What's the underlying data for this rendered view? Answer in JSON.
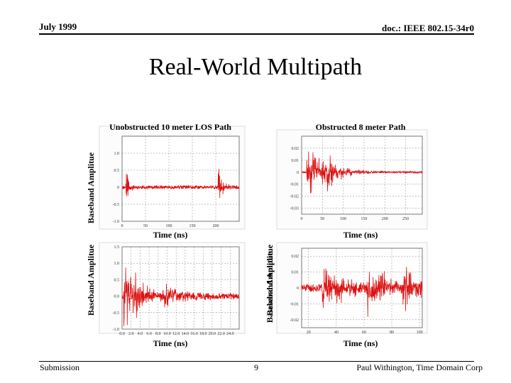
{
  "header": {
    "date": "July 1999",
    "doc_id": "doc.: IEEE 802.15-34r0"
  },
  "slide": {
    "title": "Real-World Multipath"
  },
  "footer": {
    "left": "Submission",
    "page": "9",
    "right": "Paul Withington, Time Domain Corp"
  },
  "colors": {
    "trace": "#dd1111",
    "axis": "#555555",
    "grid": "#888888",
    "frame": "#dddddd"
  },
  "chart_data": [
    {
      "type": "line",
      "title": "Unobstructed 10 meter LOS Path",
      "xlabel": "Time (ns)",
      "ylabel": "Baseband Amplitue",
      "xlim": [
        0,
        250
      ],
      "ylim": [
        -1.0,
        1.5
      ],
      "xticks": [
        0,
        50,
        100,
        150,
        200
      ],
      "yticks": [
        1.0,
        0.5,
        0,
        -0.5,
        -1.0
      ],
      "ytick_labels": [
        "1.0",
        "0.5",
        "0",
        "-0.5",
        "-1.0"
      ],
      "description_series": "baseband trace",
      "bursts": [
        {
          "t": 8,
          "amp": 0.9,
          "decay": 6
        },
        {
          "t": 205,
          "amp": 0.75,
          "decay": 8
        }
      ],
      "noise": 0.05,
      "seed": 11
    },
    {
      "type": "line",
      "title": "Obstructed 8 meter Path",
      "xlabel": "Time (ns)",
      "ylabel": "Baseband Amplitue",
      "xlim": [
        0,
        290
      ],
      "ylim": [
        -0.035,
        0.03
      ],
      "xticks": [
        0,
        50,
        100,
        150,
        200,
        250
      ],
      "yticks": [
        0.02,
        0.01,
        0,
        -0.01,
        -0.02,
        -0.03
      ],
      "ytick_labels": [
        "0.02",
        "0.01",
        "0",
        "-0.01",
        "-0.02",
        "-0.03"
      ],
      "description_series": "baseband trace",
      "bursts": [
        {
          "t": 12,
          "amp": 0.025,
          "decay": 45
        },
        {
          "t": 60,
          "amp": 0.012,
          "decay": 30
        }
      ],
      "noise": 0.0008,
      "seed": 23
    },
    {
      "type": "line",
      "title": "",
      "xlabel": "Time (ns)",
      "ylabel": "Baseband Amplitue",
      "xlim": [
        0,
        26
      ],
      "ylim": [
        -1.0,
        1.5
      ],
      "xticks": [
        0,
        2,
        4,
        6,
        8,
        10,
        12,
        14,
        16,
        18,
        20,
        22,
        24
      ],
      "xtick_labels": [
        "0.0",
        "2.0",
        "4.0",
        "6.0",
        "8.0",
        "10.0",
        "12.0",
        "14.0",
        "16.0",
        "18.0",
        "20.0",
        "22.0",
        "24.0"
      ],
      "yticks": [
        1.5,
        1.0,
        0.5,
        0,
        -0.5,
        -1.0
      ],
      "ytick_labels": [
        "1.5",
        "1.0",
        "0.5",
        "0.0",
        "-0.5",
        "-1.0"
      ],
      "description_series": "baseband trace",
      "bursts": [
        {
          "t": 0.3,
          "amp": 1.2,
          "decay": 2.5
        },
        {
          "t": 3.0,
          "amp": 0.7,
          "decay": 3
        },
        {
          "t": 9.0,
          "amp": 0.35,
          "decay": 6
        }
      ],
      "noise": 0.08,
      "seed": 37
    },
    {
      "type": "line",
      "title": "",
      "xlabel": "Time (ns)",
      "ylabel": "Baseband Amplitue",
      "xlim": [
        15,
        102
      ],
      "ylim": [
        -0.025,
        0.025
      ],
      "xticks": [
        20,
        40,
        60,
        80,
        100
      ],
      "yticks": [
        0.02,
        0.01,
        0,
        -0.01,
        -0.02
      ],
      "ytick_labels": [
        "0.02",
        "0.01",
        "0",
        "-0.01",
        "-0.02"
      ],
      "description_series": "baseband trace",
      "bursts": [
        {
          "t": 30,
          "amp": 0.014,
          "decay": 25
        },
        {
          "t": 62,
          "amp": 0.022,
          "decay": 12
        },
        {
          "t": 88,
          "amp": 0.016,
          "decay": 14
        }
      ],
      "noise": 0.0025,
      "seed": 51
    }
  ]
}
